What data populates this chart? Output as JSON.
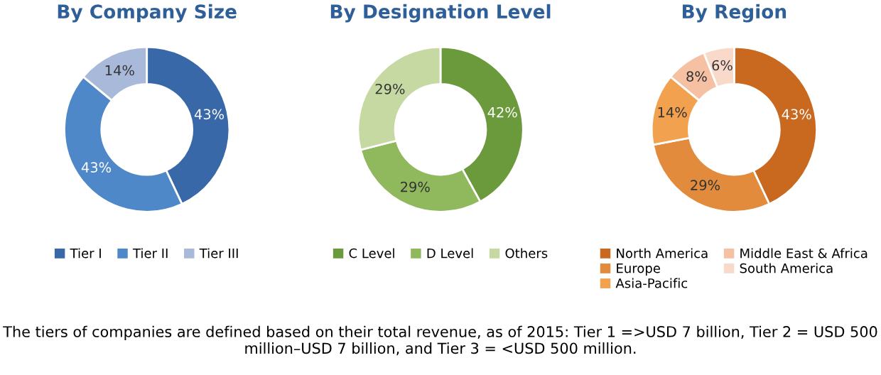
{
  "chart_data": [
    {
      "type": "donut",
      "title": "By Company Size",
      "categories": [
        "Tier I",
        "Tier II",
        "Tier III"
      ],
      "values": [
        43,
        43,
        14
      ],
      "value_labels": [
        "43%",
        "43%",
        "14%"
      ],
      "colors": [
        "#3868a8",
        "#4f88c8",
        "#a9b9d9"
      ],
      "legend": "bottom"
    },
    {
      "type": "donut",
      "title": "By Designation Level",
      "categories": [
        "C Level",
        "D Level",
        "Others"
      ],
      "values": [
        42,
        29,
        29
      ],
      "value_labels": [
        "42%",
        "29%",
        "29%"
      ],
      "colors": [
        "#6b9a3c",
        "#8fb95c",
        "#c6d9a2"
      ],
      "legend": "bottom"
    },
    {
      "type": "donut",
      "title": "By Region",
      "categories": [
        "North America",
        "Europe",
        "Asia-Pacific",
        "Middle East & Africa",
        "South America"
      ],
      "values": [
        43,
        29,
        14,
        8,
        6
      ],
      "value_labels": [
        "43%",
        "29%",
        "14%",
        "8%",
        "6%"
      ],
      "colors": [
        "#c9681f",
        "#e38b3d",
        "#f2a24f",
        "#f6c0a2",
        "#f9d9c9"
      ],
      "legend": "bottom",
      "annotations": [
        "The tiers of companies are defined based on their total revenue, as of 2015: Tier 1 =>USD 7 billion, Tier 2 = USD 500 million–USD 7 billion, and Tier 3 = <USD 500 million."
      ]
    }
  ]
}
